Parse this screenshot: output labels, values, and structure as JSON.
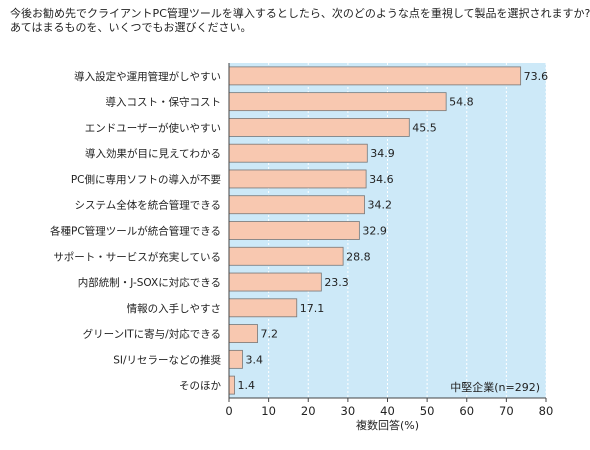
{
  "question": {
    "line1": "今後お勧め先でクライアントPC管理ツールを導入するとしたら、次のどのような点を重視して製品を選択されますか?",
    "line2": "あてはまるものを、いくつでもお選びください。"
  },
  "chart_data": {
    "type": "bar",
    "orientation": "horizontal",
    "title": "今後お勧め先でクライアントPC管理ツールを導入するとしたら、次のどのような点を重視して製品を選択されますか? あてはまるものを、いくつでもお選びください。",
    "categories": [
      "導入設定や運用管理がしやすい",
      "導入コスト・保守コスト",
      "エンドユーザーが使いやすい",
      "導入効果が目に見えてわかる",
      "PC側に専用ソフトの導入が不要",
      "システム全体を統合管理できる",
      "各種PC管理ツールが統合管理できる",
      "サポート・サービスが充実している",
      "内部統制・J-SOXに対応できる",
      "情報の入手しやすさ",
      "グリーンITに寄与/対応できる",
      "SI/リセラーなどの推奨",
      "そのほか"
    ],
    "values": [
      73.6,
      54.8,
      45.5,
      34.9,
      34.6,
      34.2,
      32.9,
      28.8,
      23.3,
      17.1,
      7.2,
      3.4,
      1.4
    ],
    "value_labels": [
      "73.6",
      "54.8",
      "45.5",
      "34.9",
      "34.6",
      "34.2",
      "32.9",
      "28.8",
      "23.3",
      "17.1",
      "7.2",
      "3.4",
      "1.4"
    ],
    "xlabel": "複数回答(%)",
    "xlim": [
      0,
      80
    ],
    "xticks": [
      0,
      10,
      20,
      30,
      40,
      50,
      60,
      70,
      80
    ],
    "xtick_labels": [
      "0",
      "10",
      "20",
      "30",
      "40",
      "50",
      "60",
      "70",
      "80"
    ],
    "annotation": "中堅企業(n=292)",
    "grid": "vertical-dashed",
    "colors": {
      "bar_fill": "#f8c8b0",
      "bar_stroke": "#777777",
      "plot_bg": "#cde9f8",
      "grid": "#ffffff"
    }
  }
}
